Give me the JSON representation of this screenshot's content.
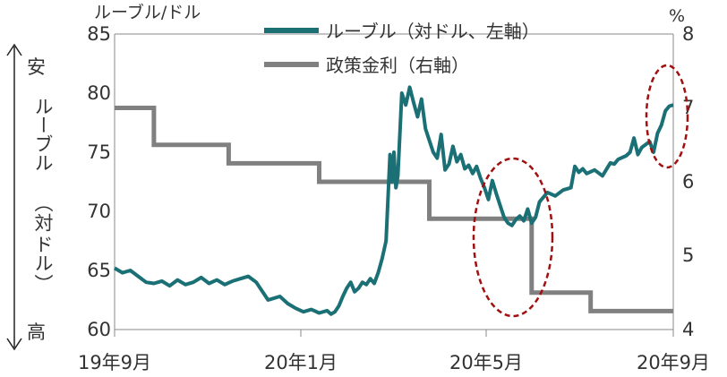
{
  "chart_data": {
    "type": "line",
    "left_axis": {
      "unit_label": "ルーブル/ドル",
      "ticks": [
        85,
        80,
        75,
        70,
        65,
        60
      ],
      "ylim": [
        60,
        85
      ]
    },
    "right_axis": {
      "unit_label": "%",
      "ticks": [
        8,
        7,
        6,
        5,
        4
      ],
      "ylim": [
        4,
        8
      ]
    },
    "x_ticks": [
      "19年9月",
      "20年1月",
      "20年5月",
      "20年9月"
    ],
    "left_axis_annotation": {
      "top": "安",
      "middle": [
        "ルーブル",
        "（",
        "対",
        "ドル",
        "）"
      ],
      "bottom": "高"
    },
    "legend": [
      {
        "label": "ルーブル（対ドル、左軸）",
        "color": "#1a7075"
      },
      {
        "label": "政策金利（右軸）",
        "color": "#808080"
      }
    ],
    "series": [
      {
        "name": "ルーブル（対ドル、左軸）",
        "axis": "left",
        "color": "#1a7075",
        "points": [
          [
            0,
            65.2
          ],
          [
            2,
            64.8
          ],
          [
            4,
            65.0
          ],
          [
            6,
            64.5
          ],
          [
            8,
            64.0
          ],
          [
            10,
            63.9
          ],
          [
            12,
            64.1
          ],
          [
            14,
            63.7
          ],
          [
            16,
            64.2
          ],
          [
            18,
            63.8
          ],
          [
            20,
            64.0
          ],
          [
            22,
            64.4
          ],
          [
            24,
            63.9
          ],
          [
            26,
            64.2
          ],
          [
            28,
            63.8
          ],
          [
            30,
            64.1
          ],
          [
            32,
            64.3
          ],
          [
            34,
            64.5
          ],
          [
            36,
            64.0
          ],
          [
            37,
            63.5
          ],
          [
            38,
            63.0
          ],
          [
            39,
            62.5
          ],
          [
            40,
            62.6
          ],
          [
            42,
            62.8
          ],
          [
            44,
            62.2
          ],
          [
            46,
            61.8
          ],
          [
            48,
            61.5
          ],
          [
            50,
            61.7
          ],
          [
            52,
            61.4
          ],
          [
            54,
            61.6
          ],
          [
            55,
            61.3
          ],
          [
            56,
            61.5
          ],
          [
            57,
            62.0
          ],
          [
            58,
            62.8
          ],
          [
            59,
            63.5
          ],
          [
            60,
            64.0
          ],
          [
            61,
            63.2
          ],
          [
            62,
            63.5
          ],
          [
            63,
            64.0
          ],
          [
            64,
            63.8
          ],
          [
            65,
            64.3
          ],
          [
            66,
            63.9
          ],
          [
            67,
            64.8
          ],
          [
            68,
            66.0
          ],
          [
            69,
            67.5
          ],
          [
            70,
            74.8
          ],
          [
            70.5,
            72.5
          ],
          [
            71,
            75.0
          ],
          [
            71.5,
            72.0
          ],
          [
            72,
            73.0
          ],
          [
            73,
            80.0
          ],
          [
            74,
            79.0
          ],
          [
            75,
            80.5
          ],
          [
            76,
            79.2
          ],
          [
            77,
            78.0
          ],
          [
            78,
            79.5
          ],
          [
            79,
            77.0
          ],
          [
            80,
            76.0
          ],
          [
            81,
            75.0
          ],
          [
            82,
            74.5
          ],
          [
            83,
            76.5
          ],
          [
            84,
            73.5
          ],
          [
            85,
            74.0
          ],
          [
            86,
            75.5
          ],
          [
            87,
            74.2
          ],
          [
            88,
            74.8
          ],
          [
            89,
            73.6
          ],
          [
            90,
            73.9
          ],
          [
            91,
            73.2
          ],
          [
            92,
            73.8
          ],
          [
            93,
            72.8
          ],
          [
            94,
            72.0
          ],
          [
            95,
            71.0
          ],
          [
            96,
            72.6
          ],
          [
            97,
            71.5
          ],
          [
            98,
            70.5
          ],
          [
            99,
            69.5
          ],
          [
            100,
            69.0
          ],
          [
            101,
            68.8
          ],
          [
            102,
            69.3
          ],
          [
            103,
            69.6
          ],
          [
            104,
            69.2
          ],
          [
            105,
            70.2
          ],
          [
            106,
            69.0
          ],
          [
            107,
            69.5
          ],
          [
            108,
            70.8
          ],
          [
            109,
            71.2
          ],
          [
            110,
            71.6
          ],
          [
            112,
            71.3
          ],
          [
            114,
            71.8
          ],
          [
            116,
            72.0
          ],
          [
            117,
            73.8
          ],
          [
            118,
            73.3
          ],
          [
            119,
            73.6
          ],
          [
            120,
            73.2
          ],
          [
            122,
            73.5
          ],
          [
            124,
            73.0
          ],
          [
            126,
            74.1
          ],
          [
            127,
            74.0
          ],
          [
            128,
            74.4
          ],
          [
            130,
            74.7
          ],
          [
            131,
            75.0
          ],
          [
            132,
            76.2
          ],
          [
            133,
            74.8
          ],
          [
            134,
            75.4
          ],
          [
            136,
            75.9
          ],
          [
            137,
            75.0
          ],
          [
            138,
            76.6
          ],
          [
            139,
            77.3
          ],
          [
            140,
            78.5
          ],
          [
            141,
            78.9
          ],
          [
            142,
            79.0
          ]
        ]
      },
      {
        "name": "政策金利（右軸）",
        "axis": "right",
        "color": "#808080",
        "points": [
          [
            0,
            7.0
          ],
          [
            10,
            7.0
          ],
          [
            10,
            6.5
          ],
          [
            29,
            6.5
          ],
          [
            29,
            6.25
          ],
          [
            52,
            6.25
          ],
          [
            52,
            6.0
          ],
          [
            80,
            6.0
          ],
          [
            80,
            5.5
          ],
          [
            106,
            5.5
          ],
          [
            106,
            4.5
          ],
          [
            121,
            4.5
          ],
          [
            121,
            4.25
          ],
          [
            142,
            4.25
          ]
        ]
      }
    ],
    "annotations": [
      "dashed red ellipse around May 2020 rate cut",
      "dashed red ellipse around September 2020 ruble level"
    ],
    "grid": false
  }
}
